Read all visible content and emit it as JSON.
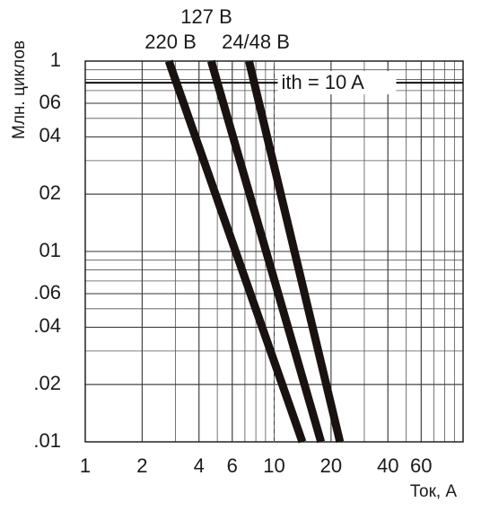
{
  "chart_data": {
    "type": "line",
    "x_label": "Ток, А",
    "y_label": "Млн. циклов",
    "log_x": true,
    "log_y": true,
    "grid": true,
    "xlim": [
      1,
      100
    ],
    "ylim": [
      0.01,
      1
    ],
    "xticks": [
      1,
      2,
      4,
      6,
      10,
      20,
      40,
      60
    ],
    "yticks": [
      {
        "value": 0.01,
        "label": ".01"
      },
      {
        "value": 0.02,
        "label": ".02"
      },
      {
        "value": 0.04,
        "label": ".04"
      },
      {
        "value": 0.06,
        "label": ".06"
      },
      {
        "value": 0.1,
        "label": "01"
      },
      {
        "value": 0.2,
        "label": "02"
      },
      {
        "value": 0.4,
        "label": "04"
      },
      {
        "value": 0.6,
        "label": "06"
      },
      1
    ],
    "series": [
      {
        "name": "220 В",
        "color": "#1a1210",
        "x": [
          2.77,
          14.1
        ],
        "values": [
          1,
          0.01
        ]
      },
      {
        "name": "127 В",
        "color": "#1a1210",
        "x": [
          4.64,
          17.7
        ],
        "values": [
          1,
          0.01
        ]
      },
      {
        "name": "24/48 В",
        "color": "#1a1210",
        "x": [
          7.36,
          22.3
        ],
        "values": [
          1,
          0.01
        ]
      }
    ],
    "annotation": {
      "text": "ith = 10 A",
      "x": 10,
      "y": 0.77
    }
  }
}
